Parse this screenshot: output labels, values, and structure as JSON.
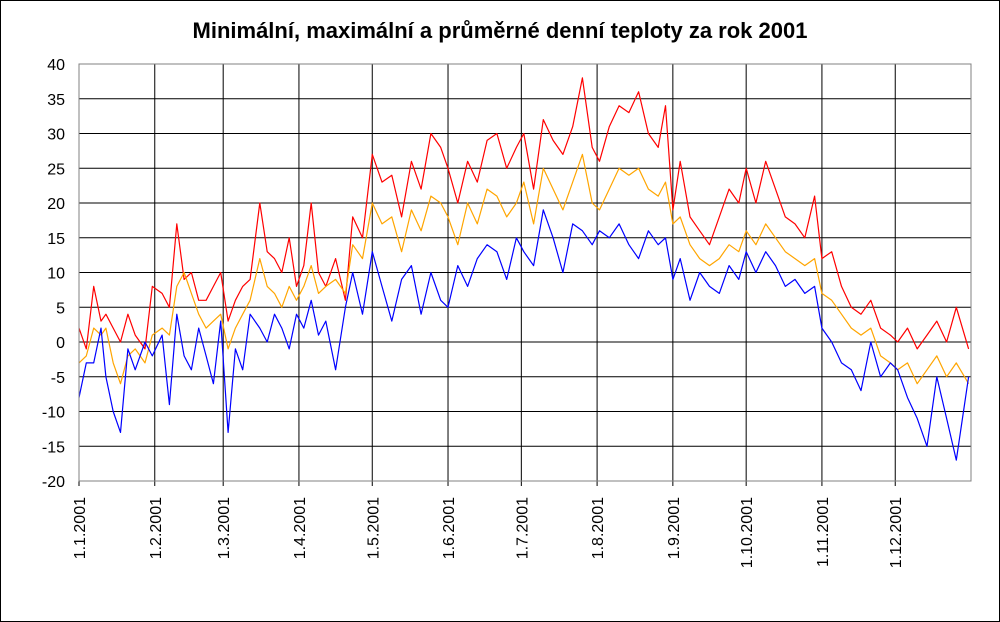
{
  "chart_data": {
    "type": "line",
    "title": "Minimální, maximální a průměrné denní teploty za rok 2001",
    "xlabel": "",
    "ylabel": "",
    "ylim": [
      -20,
      40
    ],
    "yticks": [
      -20,
      -15,
      -10,
      -5,
      0,
      5,
      10,
      15,
      20,
      25,
      30,
      35,
      40
    ],
    "xticks": [
      "1.1.2001",
      "1.2.2001",
      "1.3.2001",
      "1.4.2001",
      "1.5.2001",
      "1.6.2001",
      "1.7.2001",
      "1.8.2001",
      "1.9.2001",
      "1.10.2001",
      "1.11.2001",
      "1.12.2001"
    ],
    "grid": true,
    "legend": "none",
    "x_unit": "day of year 2001 (1 = 1.1.2001)",
    "colors": {
      "max": "#ff0000",
      "avg": "#ffa500",
      "min": "#0000ff"
    },
    "series": [
      {
        "key": "max",
        "x": [
          1,
          4,
          7,
          10,
          12,
          15,
          18,
          21,
          24,
          28,
          31,
          35,
          38,
          41,
          44,
          47,
          50,
          53,
          56,
          59,
          62,
          65,
          68,
          71,
          75,
          78,
          81,
          84,
          87,
          90,
          93,
          96,
          99,
          102,
          106,
          110,
          113,
          117,
          121,
          125,
          129,
          133,
          137,
          141,
          145,
          149,
          152,
          156,
          160,
          164,
          168,
          172,
          176,
          180,
          183,
          187,
          191,
          195,
          199,
          203,
          207,
          211,
          214,
          218,
          222,
          226,
          230,
          234,
          238,
          241,
          244,
          247,
          251,
          255,
          259,
          263,
          267,
          271,
          274,
          278,
          282,
          286,
          290,
          294,
          298,
          302,
          305,
          309,
          313,
          317,
          321,
          325,
          329,
          333,
          336,
          340,
          344,
          348,
          352,
          356,
          360,
          365
        ],
        "values": [
          2,
          -1,
          8,
          3,
          4,
          2,
          0,
          4,
          1,
          -1,
          8,
          7,
          5,
          17,
          9,
          10,
          6,
          6,
          8,
          10,
          3,
          6,
          8,
          9,
          20,
          13,
          12,
          10,
          15,
          8,
          11,
          20,
          10,
          8,
          12,
          6,
          18,
          15,
          27,
          23,
          24,
          18,
          26,
          22,
          30,
          28,
          25,
          20,
          26,
          23,
          29,
          30,
          25,
          28,
          30,
          22,
          32,
          29,
          27,
          31,
          38,
          28,
          26,
          31,
          34,
          33,
          36,
          30,
          28,
          34,
          19,
          26,
          18,
          16,
          14,
          18,
          22,
          20,
          25,
          20,
          26,
          22,
          18,
          17,
          15,
          21,
          12,
          13,
          8,
          5,
          4,
          6,
          2,
          1,
          0,
          2,
          -1,
          1,
          3,
          0,
          5,
          -1
        ]
      },
      {
        "key": "avg",
        "x": [
          1,
          4,
          7,
          10,
          12,
          15,
          18,
          21,
          24,
          28,
          31,
          35,
          38,
          41,
          44,
          47,
          50,
          53,
          56,
          59,
          62,
          65,
          68,
          71,
          75,
          78,
          81,
          84,
          87,
          90,
          93,
          96,
          99,
          102,
          106,
          110,
          113,
          117,
          121,
          125,
          129,
          133,
          137,
          141,
          145,
          149,
          152,
          156,
          160,
          164,
          168,
          172,
          176,
          180,
          183,
          187,
          191,
          195,
          199,
          203,
          207,
          211,
          214,
          218,
          222,
          226,
          230,
          234,
          238,
          241,
          244,
          247,
          251,
          255,
          259,
          263,
          267,
          271,
          274,
          278,
          282,
          286,
          290,
          294,
          298,
          302,
          305,
          309,
          313,
          317,
          321,
          325,
          329,
          333,
          336,
          340,
          344,
          348,
          352,
          356,
          360,
          365
        ],
        "values": [
          -3,
          -2,
          2,
          1,
          2,
          -3,
          -6,
          -2,
          -1,
          -3,
          1,
          2,
          1,
          8,
          10,
          7,
          4,
          2,
          3,
          4,
          -1,
          2,
          4,
          6,
          12,
          8,
          7,
          5,
          8,
          6,
          8,
          11,
          7,
          8,
          9,
          7,
          14,
          12,
          20,
          17,
          18,
          13,
          19,
          16,
          21,
          20,
          18,
          14,
          20,
          17,
          22,
          21,
          18,
          20,
          23,
          17,
          25,
          22,
          19,
          23,
          27,
          20,
          19,
          22,
          25,
          24,
          25,
          22,
          21,
          23,
          17,
          18,
          14,
          12,
          11,
          12,
          14,
          13,
          16,
          14,
          17,
          15,
          13,
          12,
          11,
          12,
          7,
          6,
          4,
          2,
          1,
          2,
          -2,
          -3,
          -4,
          -3,
          -6,
          -4,
          -2,
          -5,
          -3,
          -6
        ]
      },
      {
        "key": "min",
        "x": [
          1,
          4,
          7,
          10,
          12,
          15,
          18,
          21,
          24,
          28,
          31,
          35,
          38,
          41,
          44,
          47,
          50,
          53,
          56,
          59,
          62,
          65,
          68,
          71,
          75,
          78,
          81,
          84,
          87,
          90,
          93,
          96,
          99,
          102,
          106,
          110,
          113,
          117,
          121,
          125,
          129,
          133,
          137,
          141,
          145,
          149,
          152,
          156,
          160,
          164,
          168,
          172,
          176,
          180,
          183,
          187,
          191,
          195,
          199,
          203,
          207,
          211,
          214,
          218,
          222,
          226,
          230,
          234,
          238,
          241,
          244,
          247,
          251,
          255,
          259,
          263,
          267,
          271,
          274,
          278,
          282,
          286,
          290,
          294,
          298,
          302,
          305,
          309,
          313,
          317,
          321,
          325,
          329,
          333,
          336,
          340,
          344,
          348,
          352,
          356,
          360,
          365
        ],
        "values": [
          -8,
          -3,
          -3,
          2,
          -5,
          -10,
          -13,
          -1,
          -4,
          0,
          -2,
          1,
          -9,
          4,
          -2,
          -4,
          2,
          -2,
          -6,
          3,
          -13,
          -1,
          -4,
          4,
          2,
          0,
          4,
          2,
          -1,
          4,
          2,
          6,
          1,
          3,
          -4,
          5,
          10,
          4,
          13,
          8,
          3,
          9,
          11,
          4,
          10,
          6,
          5,
          11,
          8,
          12,
          14,
          13,
          9,
          15,
          13,
          11,
          19,
          15,
          10,
          17,
          16,
          14,
          16,
          15,
          17,
          14,
          12,
          16,
          14,
          15,
          9,
          12,
          6,
          10,
          8,
          7,
          11,
          9,
          13,
          10,
          13,
          11,
          8,
          9,
          7,
          8,
          2,
          0,
          -3,
          -4,
          -7,
          0,
          -5,
          -3,
          -4,
          -8,
          -11,
          -15,
          -5,
          -11,
          -17,
          -5
        ]
      }
    ]
  }
}
